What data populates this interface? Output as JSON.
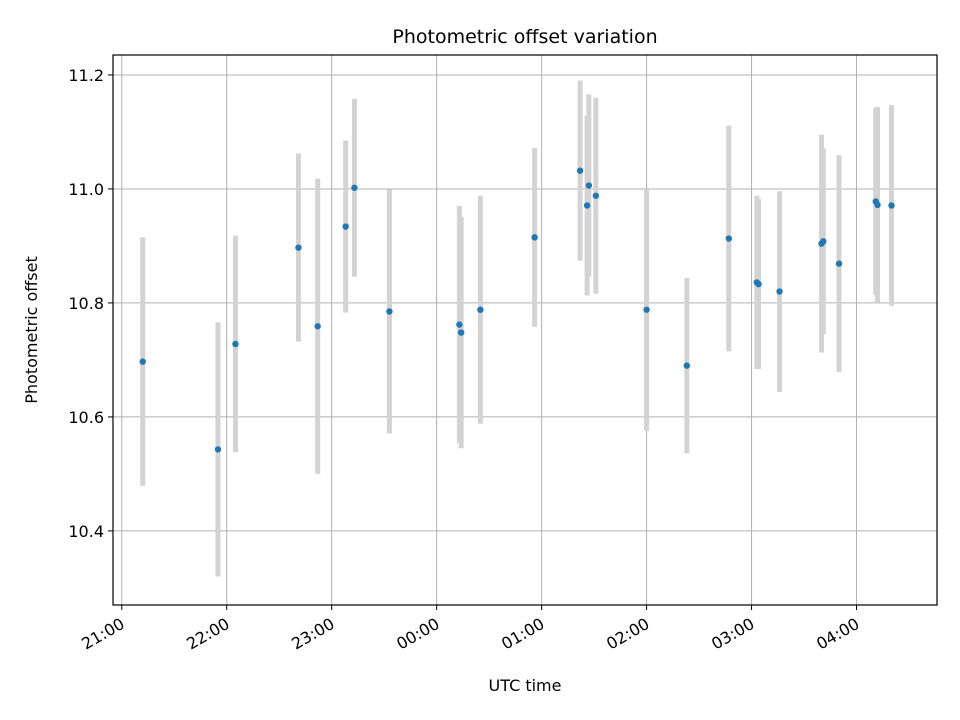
{
  "chart_data": {
    "type": "scatter",
    "title": "Photometric offset variation",
    "xlabel": "UTC time",
    "ylabel": "Photometric offset",
    "x_axis_type": "time",
    "xlim": [
      "20:55",
      "04:46"
    ],
    "ylim": [
      10.27,
      11.235
    ],
    "x_ticks": [
      "21:00",
      "22:00",
      "23:00",
      "00:00",
      "01:00",
      "02:00",
      "03:00",
      "04:00"
    ],
    "y_ticks": [
      10.4,
      10.6,
      10.8,
      11.0,
      11.2
    ],
    "y_tick_labels": [
      "10.4",
      "10.6",
      "10.8",
      "11.0",
      "11.2"
    ],
    "grid": true,
    "legend": "none",
    "colors": {
      "points": "#1f77b4",
      "errorbars": "#d3d3d3",
      "grid": "#b0b0b0"
    },
    "points": [
      {
        "x": "21:12",
        "y": 10.697,
        "err": 0.218
      },
      {
        "x": "21:55",
        "y": 10.543,
        "err": 0.223
      },
      {
        "x": "22:05",
        "y": 10.728,
        "err": 0.19
      },
      {
        "x": "22:41",
        "y": 10.897,
        "err": 0.165
      },
      {
        "x": "22:52",
        "y": 10.759,
        "err": 0.259
      },
      {
        "x": "23:08",
        "y": 10.934,
        "err": 0.151
      },
      {
        "x": "23:13",
        "y": 11.002,
        "err": 0.156
      },
      {
        "x": "23:33",
        "y": 10.785,
        "err": 0.214
      },
      {
        "x": "00:13",
        "y": 10.762,
        "err": 0.208
      },
      {
        "x": "00:14",
        "y": 10.748,
        "err": 0.203
      },
      {
        "x": "00:25",
        "y": 10.788,
        "err": 0.2
      },
      {
        "x": "00:56",
        "y": 10.915,
        "err": 0.157
      },
      {
        "x": "01:22",
        "y": 11.032,
        "err": 0.158
      },
      {
        "x": "01:26",
        "y": 10.971,
        "err": 0.158
      },
      {
        "x": "01:27",
        "y": 11.006,
        "err": 0.16
      },
      {
        "x": "01:31",
        "y": 10.988,
        "err": 0.172
      },
      {
        "x": "02:00",
        "y": 10.788,
        "err": 0.212
      },
      {
        "x": "02:23",
        "y": 10.69,
        "err": 0.154
      },
      {
        "x": "02:47",
        "y": 10.913,
        "err": 0.198
      },
      {
        "x": "03:03",
        "y": 10.836,
        "err": 0.152
      },
      {
        "x": "03:04",
        "y": 10.833,
        "err": 0.149
      },
      {
        "x": "03:16",
        "y": 10.82,
        "err": 0.176
      },
      {
        "x": "03:40",
        "y": 10.904,
        "err": 0.191
      },
      {
        "x": "03:41",
        "y": 10.908,
        "err": 0.163
      },
      {
        "x": "03:50",
        "y": 10.869,
        "err": 0.19
      },
      {
        "x": "04:11",
        "y": 10.978,
        "err": 0.164
      },
      {
        "x": "04:12",
        "y": 10.972,
        "err": 0.172
      },
      {
        "x": "04:20",
        "y": 10.971,
        "err": 0.176
      }
    ]
  }
}
